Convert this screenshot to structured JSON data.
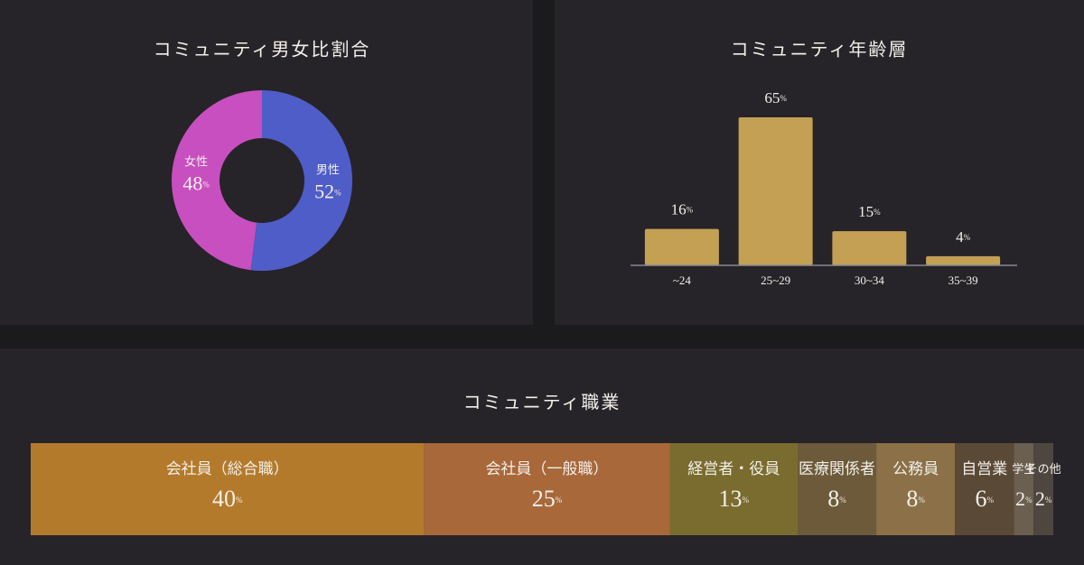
{
  "chart_data": [
    {
      "type": "donut",
      "title": "コミュニティ男女比割合",
      "unit": "%",
      "categories": [
        "男性",
        "女性"
      ],
      "values": [
        52,
        48
      ],
      "colors": [
        "#4f5dc8",
        "#c84fbf"
      ]
    },
    {
      "type": "bar",
      "title": "コミュニティ年齢層",
      "unit": "%",
      "categories": [
        "~24",
        "25~29",
        "30~34",
        "35~39"
      ],
      "values": [
        16,
        65,
        15,
        4
      ],
      "color": "#c4a055"
    },
    {
      "type": "stacked",
      "title": "コミュニティ職業",
      "unit": "%",
      "categories": [
        "会社員（総合職）",
        "会社員（一般職）",
        "経営者・役員",
        "医療関係者",
        "公務員",
        "自営業",
        "学生",
        "その他"
      ],
      "values": [
        40,
        25,
        13,
        8,
        8,
        6,
        2,
        2
      ],
      "colors": [
        "#b47a2c",
        "#a8683a",
        "#7a6c2e",
        "#6c5a3a",
        "#8c7148",
        "#5a4936",
        "#6a5f50",
        "#4e4740"
      ]
    }
  ]
}
